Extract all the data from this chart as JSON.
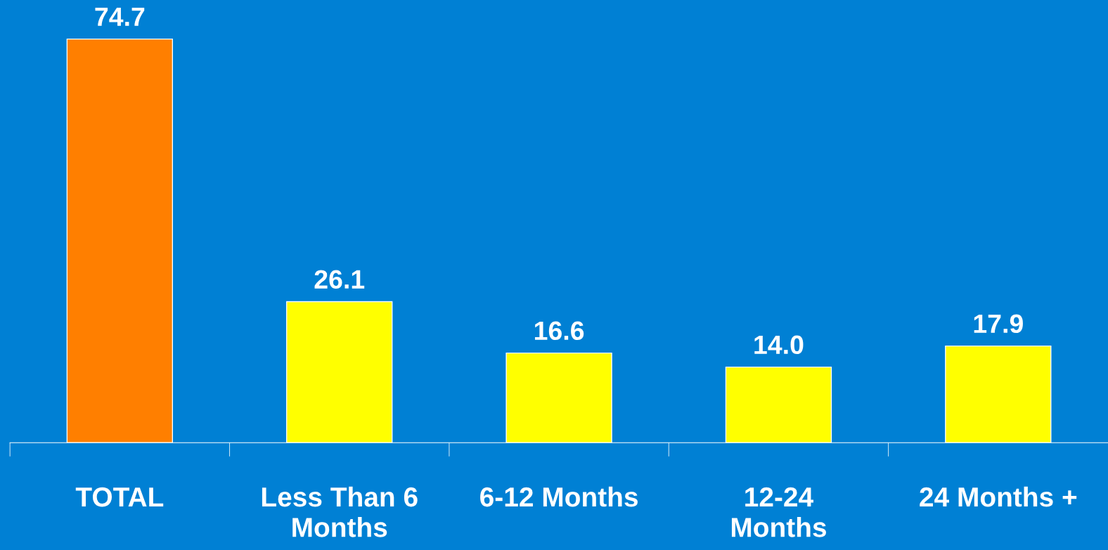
{
  "chart_data": {
    "type": "bar",
    "categories": [
      "TOTAL",
      "Less Than 6\nMonths",
      "6-12 Months",
      "12-24\nMonths",
      "24 Months +"
    ],
    "values": [
      74.7,
      26.1,
      16.6,
      14.0,
      17.9
    ],
    "colors": [
      "#ff7f00",
      "#ffff00",
      "#ffff00",
      "#ffff00",
      "#ffff00"
    ],
    "data_labels": true,
    "value_labels": [
      "74.7",
      "26.1",
      "16.6",
      "14.0",
      "17.9"
    ],
    "grid": false,
    "legend": false
  }
}
